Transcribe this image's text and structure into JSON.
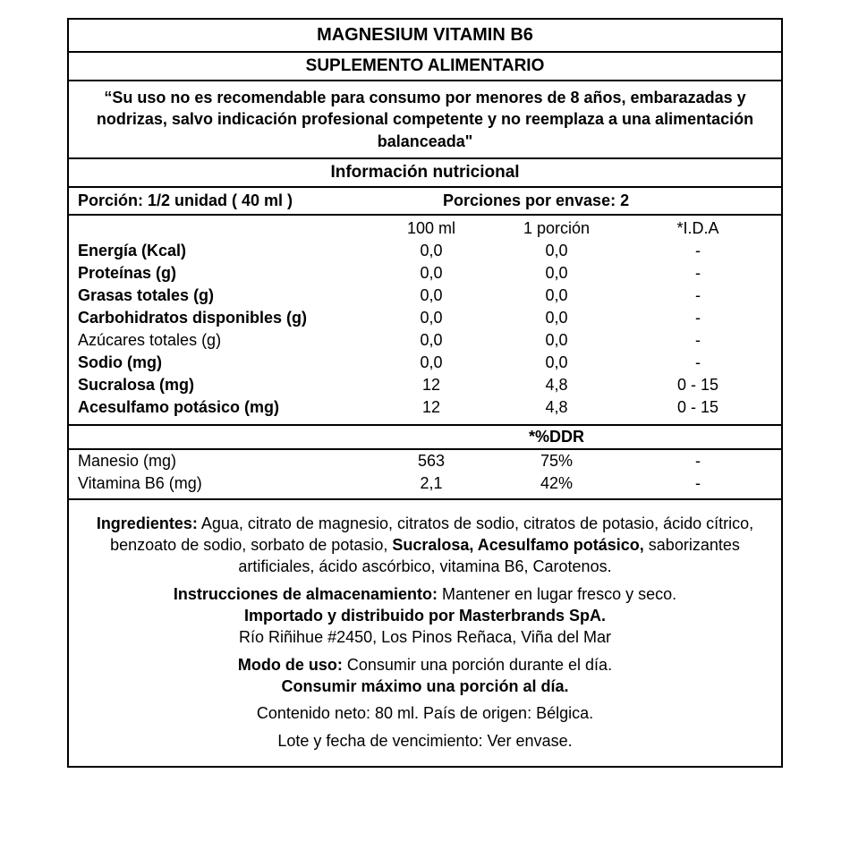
{
  "title": "MAGNESIUM VITAMIN B6",
  "subtitle": "SUPLEMENTO ALIMENTARIO",
  "warning": "“Su uso no es recomendable para consumo por menores de 8 años, embarazadas y nodrizas, salvo indicación profesional competente y no reemplaza a una alimentación balanceada\"",
  "info_header": "Información nutricional",
  "portion": {
    "left": "Porción: 1/2 unidad (   40  ml )",
    "right": "Porciones por envase: 2"
  },
  "columns": {
    "c100": "100 ml",
    "cpor": "1 porción",
    "cida": "*I.D.A"
  },
  "rows": [
    {
      "label": "Energía (Kcal)",
      "bold": true,
      "c100": "0,0",
      "cpor": "0,0",
      "cida": "-"
    },
    {
      "label": "Proteínas (g)",
      "bold": true,
      "c100": "0,0",
      "cpor": "0,0",
      "cida": "-"
    },
    {
      "label": "Grasas totales (g)",
      "bold": true,
      "c100": "0,0",
      "cpor": "0,0",
      "cida": "-"
    },
    {
      "label": "Carbohidratos disponibles (g)",
      "bold": true,
      "c100": "0,0",
      "cpor": "0,0",
      "cida": "-"
    },
    {
      "label": "Azúcares totales (g)",
      "bold": false,
      "c100": "0,0",
      "cpor": "0,0",
      "cida": "-"
    },
    {
      "label": "Sodio (mg)",
      "bold": true,
      "c100": "0,0",
      "cpor": "0,0",
      "cida": "-"
    },
    {
      "label": "Sucralosa (mg)",
      "bold": true,
      "c100": "12",
      "cpor": "4,8",
      "cida": "0 - 15"
    },
    {
      "label": "Acesulfamo potásico (mg)",
      "bold": true,
      "c100": "12",
      "cpor": "4,8",
      "cida": "0 - 15"
    }
  ],
  "ddr_label": "*%DDR",
  "rows2": [
    {
      "label": "Manesio (mg)",
      "c100": "563",
      "cpor": "75%",
      "cida": "-"
    },
    {
      "label": "Vitamina B6 (mg)",
      "c100": "2,1",
      "cpor": "42%",
      "cida": "-"
    }
  ],
  "ingredients": {
    "label": "Ingredientes:",
    "text1": " Agua, citrato de magnesio, citratos de sodio, citratos de potasio, ácido cítrico, benzoato de sodio, sorbato de potasio, ",
    "bold_mid": "Sucralosa, Acesulfamo potásico,",
    "text2": " saborizantes artificiales, ácido ascórbico, vitamina B6, Carotenos."
  },
  "storage": {
    "label": "Instrucciones de almacenamiento:",
    "text": " Mantener en lugar fresco y seco."
  },
  "importer": "Importado y distribuido por Masterbrands SpA.",
  "address": "Río Riñihue #2450, Los Pinos Reñaca, Viña del Mar",
  "usage": {
    "label": "Modo de uso:",
    "text": " Consumir una porción durante el día."
  },
  "max": "Consumir máximo una porción al día.",
  "net": "Contenido neto: 80 ml.  País de origen: Bélgica.",
  "lot": "Lote y fecha de vencimiento: Ver envase."
}
